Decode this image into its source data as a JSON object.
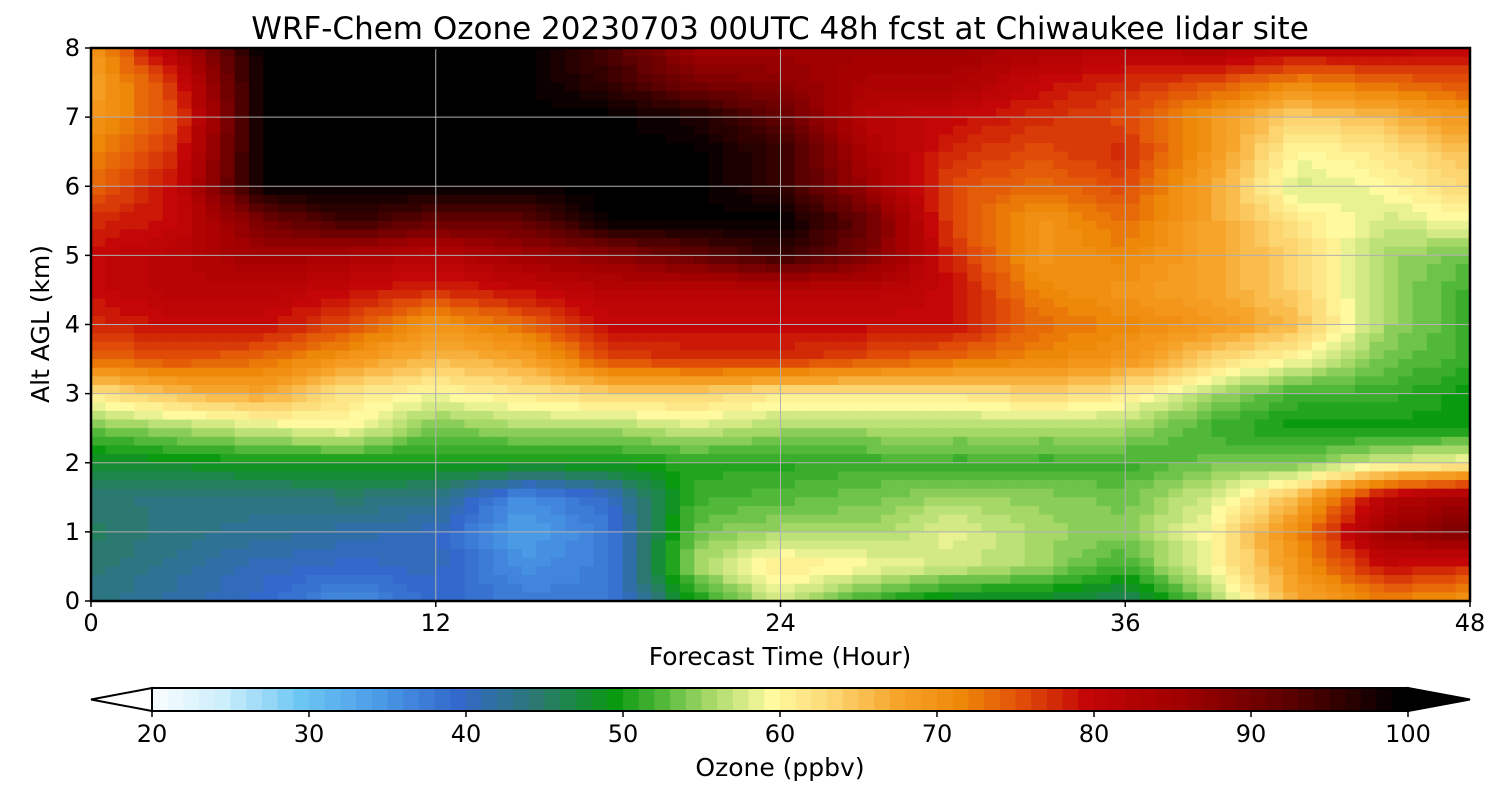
{
  "chart_data": {
    "type": "heatmap",
    "title": "WRF-Chem Ozone  20230703 00UTC 48h fcst at Chiwaukee lidar site",
    "xlabel": "Forecast Time (Hour)",
    "ylabel": "Alt AGL (km)",
    "xlim": [
      0,
      48
    ],
    "ylim": [
      0,
      8
    ],
    "x_ticks": [
      "0",
      "12",
      "24",
      "36",
      "48"
    ],
    "y_ticks": [
      "0",
      "1",
      "2",
      "3",
      "4",
      "5",
      "6",
      "7",
      "8"
    ],
    "grid": true,
    "x": [
      0,
      3,
      6,
      9,
      12,
      15,
      18,
      21,
      24,
      27,
      30,
      33,
      36,
      39,
      42,
      45,
      48
    ],
    "y": [
      0,
      0.5,
      1,
      1.5,
      2,
      2.5,
      3,
      3.5,
      4,
      4.5,
      5,
      5.5,
      6,
      6.5,
      7,
      7.5,
      8
    ],
    "z": [
      [
        44,
        42,
        40,
        36,
        40,
        38,
        38,
        50,
        58,
        52,
        48,
        48,
        46,
        55,
        68,
        72,
        70
      ],
      [
        45,
        43,
        41,
        40,
        41,
        36,
        38,
        56,
        62,
        60,
        58,
        56,
        52,
        60,
        70,
        80,
        78
      ],
      [
        46,
        44,
        43,
        42,
        41,
        34,
        38,
        54,
        56,
        56,
        59,
        56,
        55,
        60,
        72,
        86,
        90
      ],
      [
        45,
        44,
        44,
        45,
        44,
        36,
        40,
        52,
        53,
        54,
        56,
        55,
        54,
        58,
        66,
        82,
        86
      ],
      [
        48,
        49,
        50,
        50,
        50,
        50,
        50,
        51,
        51,
        52,
        52,
        52,
        52,
        54,
        54,
        58,
        60
      ],
      [
        54,
        56,
        58,
        60,
        54,
        56,
        56,
        58,
        56,
        56,
        56,
        56,
        56,
        52,
        50,
        50,
        50
      ],
      [
        62,
        66,
        68,
        62,
        60,
        62,
        64,
        64,
        62,
        62,
        62,
        64,
        62,
        56,
        52,
        52,
        50
      ],
      [
        74,
        76,
        74,
        70,
        66,
        68,
        76,
        78,
        78,
        76,
        74,
        72,
        70,
        64,
        60,
        54,
        52
      ],
      [
        78,
        80,
        80,
        76,
        70,
        74,
        80,
        80,
        80,
        80,
        80,
        74,
        72,
        70,
        66,
        56,
        52
      ],
      [
        80,
        82,
        82,
        80,
        78,
        80,
        82,
        82,
        82,
        82,
        80,
        72,
        70,
        68,
        64,
        56,
        52
      ],
      [
        80,
        82,
        86,
        84,
        82,
        86,
        88,
        92,
        96,
        90,
        78,
        70,
        72,
        68,
        64,
        56,
        54
      ],
      [
        78,
        80,
        90,
        96,
        92,
        92,
        100,
        100,
        100,
        92,
        76,
        70,
        74,
        68,
        62,
        58,
        60
      ],
      [
        74,
        80,
        100,
        100,
        100,
        100,
        100,
        100,
        96,
        86,
        76,
        74,
        76,
        68,
        58,
        60,
        64
      ],
      [
        72,
        78,
        100,
        100,
        100,
        100,
        100,
        100,
        96,
        84,
        78,
        76,
        78,
        70,
        60,
        62,
        66
      ],
      [
        70,
        76,
        100,
        100,
        100,
        100,
        100,
        98,
        92,
        82,
        80,
        78,
        76,
        70,
        64,
        66,
        70
      ],
      [
        68,
        78,
        100,
        100,
        100,
        100,
        96,
        90,
        88,
        84,
        84,
        80,
        78,
        76,
        72,
        74,
        76
      ],
      [
        70,
        84,
        100,
        100,
        100,
        100,
        94,
        86,
        86,
        86,
        86,
        84,
        82,
        84,
        82,
        82,
        80
      ]
    ],
    "colorbar": {
      "label": "Ozone  (ppbv)",
      "min": 20,
      "max": 100,
      "ticks": [
        "20",
        "30",
        "40",
        "50",
        "60",
        "70",
        "80",
        "90",
        "100"
      ],
      "orientation": "horizontal",
      "extend": "both",
      "levels": 81,
      "stops": [
        {
          "value": 20,
          "color": "#ffffff"
        },
        {
          "value": 25,
          "color": "#cdeefb"
        },
        {
          "value": 30,
          "color": "#6cc6f3"
        },
        {
          "value": 35,
          "color": "#4a9ae6"
        },
        {
          "value": 40,
          "color": "#3368cc"
        },
        {
          "value": 45,
          "color": "#2a7870"
        },
        {
          "value": 50,
          "color": "#0a9a10"
        },
        {
          "value": 53,
          "color": "#52b83a"
        },
        {
          "value": 56,
          "color": "#a6d868"
        },
        {
          "value": 60,
          "color": "#fffaa0"
        },
        {
          "value": 64,
          "color": "#fcd470"
        },
        {
          "value": 68,
          "color": "#f7a42a"
        },
        {
          "value": 72,
          "color": "#ee8808"
        },
        {
          "value": 76,
          "color": "#e04c08"
        },
        {
          "value": 80,
          "color": "#c40606"
        },
        {
          "value": 86,
          "color": "#a00000"
        },
        {
          "value": 93,
          "color": "#5a0000"
        },
        {
          "value": 100,
          "color": "#000000"
        }
      ]
    }
  }
}
